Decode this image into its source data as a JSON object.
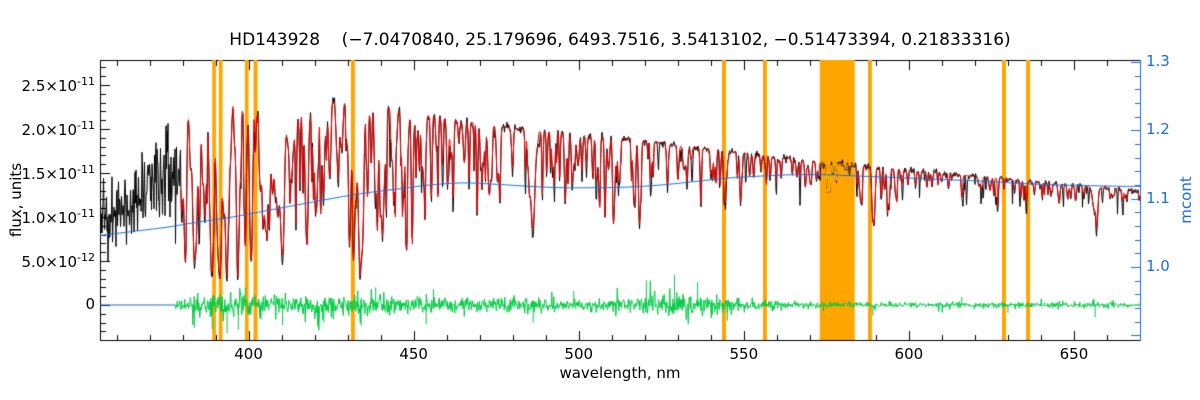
{
  "chart_data": {
    "type": "line",
    "title": "HD143928    (−7.0470840, 25.179696, 6493.7516, 3.5413102, −0.51473394, 0.21833316)",
    "xlabel": "wavelength, nm",
    "ylabel_left": "flux, units",
    "ylabel_right": "mcont",
    "x_range": [
      355,
      670
    ],
    "y_left_range": [
      -3.98e-12,
      2.784e-11
    ],
    "y_right_range": [
      0.8931,
      1.3029
    ],
    "x_major_ticks": [
      {
        "v": 400,
        "label": "400"
      },
      {
        "v": 450,
        "label": "450"
      },
      {
        "v": 500,
        "label": "500"
      },
      {
        "v": 550,
        "label": "550"
      },
      {
        "v": 600,
        "label": "600"
      },
      {
        "v": 650,
        "label": "650"
      }
    ],
    "x_minor_step": 10,
    "y_left_ticks": [
      {
        "v": 0,
        "label": "0"
      },
      {
        "v": 5e-12,
        "label": "5.0×10^-12"
      },
      {
        "v": 1e-11,
        "label": "1.0×10^-11"
      },
      {
        "v": 1.5e-11,
        "label": "1.5×10^-11"
      },
      {
        "v": 2e-11,
        "label": "2.0×10^-11"
      },
      {
        "v": 2.5e-11,
        "label": "2.5×10^-11"
      }
    ],
    "y_left_minor_step": 1e-12,
    "y_right_ticks": [
      {
        "v": 1.0,
        "label": "1.0"
      },
      {
        "v": 1.1,
        "label": "1.1"
      },
      {
        "v": 1.2,
        "label": "1.2"
      },
      {
        "v": 1.3,
        "label": "1.3"
      }
    ],
    "y_right_minor_step": 0.02,
    "colors": {
      "observed": "#000000",
      "fit": "#e60000",
      "fit_masked": "#ffdf00",
      "continuum": "#1a6ee0",
      "residual": "#00cc44",
      "mask": "#ffa500",
      "axis": "#000000",
      "right_axis": "#1a6ee0",
      "background": "#ffffff"
    },
    "masked_bands": [
      [
        389.0,
        390.1
      ],
      [
        391.0,
        392.1
      ],
      [
        398.9,
        400.0
      ],
      [
        401.5,
        402.7
      ],
      [
        431.0,
        432.2
      ],
      [
        543.4,
        544.6
      ],
      [
        555.8,
        557.0
      ],
      [
        573.0,
        583.6
      ],
      [
        587.6,
        588.8
      ],
      [
        628.2,
        629.4
      ],
      [
        635.5,
        636.7
      ]
    ],
    "continuum_envelope": {
      "x": [
        355,
        362,
        368,
        373,
        378,
        383,
        390,
        400,
        410,
        420,
        430,
        440,
        450,
        460,
        470,
        480,
        490,
        500,
        510,
        520,
        530,
        540,
        550,
        560,
        570,
        580,
        590,
        600,
        610,
        620,
        630,
        640,
        650,
        660,
        670
      ],
      "y": [
        1.3,
        1.45,
        1.65,
        1.85,
        2.1,
        2.28,
        2.35,
        2.33,
        2.3,
        2.31,
        2.33,
        2.26,
        2.18,
        2.12,
        2.06,
        2.01,
        1.97,
        1.94,
        1.9,
        1.86,
        1.81,
        1.77,
        1.72,
        1.68,
        1.64,
        1.6,
        1.57,
        1.53,
        1.5,
        1.46,
        1.43,
        1.39,
        1.36,
        1.33,
        1.3
      ]
    },
    "major_lines": [
      [
        379.8,
        0.5,
        0.6
      ],
      [
        381.0,
        0.4,
        0.4
      ],
      [
        383.5,
        0.62,
        0.7
      ],
      [
        385.0,
        0.4,
        0.4
      ],
      [
        386.7,
        0.45,
        0.5
      ],
      [
        388.9,
        0.68,
        0.8
      ],
      [
        391.0,
        0.35,
        0.4
      ],
      [
        393.4,
        0.74,
        0.8
      ],
      [
        396.8,
        0.72,
        0.8
      ],
      [
        400.9,
        0.35,
        0.4
      ],
      [
        404.6,
        0.42,
        0.4
      ],
      [
        406.3,
        0.35,
        0.35
      ],
      [
        410.2,
        0.68,
        0.9
      ],
      [
        413.1,
        0.3,
        0.35
      ],
      [
        414.4,
        0.35,
        0.35
      ],
      [
        417.2,
        0.3,
        0.35
      ],
      [
        420.2,
        0.28,
        0.3
      ],
      [
        422.7,
        0.45,
        0.45
      ],
      [
        427.2,
        0.35,
        0.35
      ],
      [
        430.8,
        0.5,
        0.5
      ],
      [
        432.6,
        0.38,
        0.4
      ],
      [
        434.0,
        0.66,
        0.9
      ],
      [
        438.4,
        0.45,
        0.45
      ],
      [
        440.5,
        0.3,
        0.3
      ],
      [
        444.0,
        0.28,
        0.3
      ],
      [
        447.1,
        0.32,
        0.35
      ],
      [
        453.0,
        0.3,
        0.35
      ],
      [
        455.4,
        0.28,
        0.3
      ],
      [
        458.7,
        0.25,
        0.3
      ],
      [
        462.0,
        0.25,
        0.3
      ],
      [
        466.8,
        0.28,
        0.3
      ],
      [
        470.3,
        0.22,
        0.3
      ],
      [
        473.7,
        0.2,
        0.3
      ],
      [
        476.0,
        0.22,
        0.3
      ],
      [
        480.0,
        0.2,
        0.3
      ],
      [
        486.1,
        0.56,
        0.9
      ],
      [
        489.0,
        0.22,
        0.3
      ],
      [
        492.0,
        0.2,
        0.3
      ],
      [
        495.8,
        0.18,
        0.3
      ],
      [
        498.0,
        0.25,
        0.35
      ],
      [
        501.0,
        0.22,
        0.3
      ],
      [
        504.2,
        0.2,
        0.3
      ],
      [
        508.0,
        0.18,
        0.3
      ],
      [
        512.0,
        0.22,
        0.3
      ],
      [
        516.7,
        0.3,
        0.45
      ],
      [
        518.4,
        0.28,
        0.4
      ],
      [
        522.0,
        0.18,
        0.3
      ],
      [
        526.9,
        0.25,
        0.35
      ],
      [
        532.8,
        0.22,
        0.35
      ],
      [
        537.0,
        0.18,
        0.3
      ],
      [
        540.0,
        0.16,
        0.3
      ],
      [
        544.0,
        0.18,
        0.3
      ],
      [
        549.0,
        0.15,
        0.3
      ],
      [
        553.0,
        0.14,
        0.3
      ],
      [
        558.0,
        0.14,
        0.3
      ],
      [
        561.3,
        0.13,
        0.3
      ],
      [
        567.0,
        0.12,
        0.3
      ],
      [
        572.0,
        0.12,
        0.3
      ],
      [
        578.0,
        0.12,
        0.3
      ],
      [
        585.0,
        0.12,
        0.3
      ],
      [
        589.0,
        0.28,
        0.45
      ],
      [
        589.6,
        0.22,
        0.4
      ],
      [
        594.0,
        0.1,
        0.3
      ],
      [
        598.0,
        0.1,
        0.3
      ],
      [
        602.0,
        0.1,
        0.3
      ],
      [
        607.0,
        0.1,
        0.3
      ],
      [
        612.0,
        0.1,
        0.3
      ],
      [
        616.0,
        0.09,
        0.3
      ],
      [
        622.0,
        0.1,
        0.3
      ],
      [
        627.0,
        0.09,
        0.3
      ],
      [
        632.0,
        0.09,
        0.3
      ],
      [
        638.0,
        0.09,
        0.3
      ],
      [
        643.0,
        0.09,
        0.3
      ],
      [
        649.0,
        0.09,
        0.3
      ],
      [
        653.0,
        0.08,
        0.3
      ],
      [
        656.3,
        0.2,
        0.9
      ],
      [
        661.0,
        0.08,
        0.3
      ],
      [
        666.0,
        0.08,
        0.3
      ]
    ],
    "minor_line_regions": [
      {
        "range": [
          380,
          450
        ],
        "count": 160,
        "depth": [
          0.05,
          0.45
        ],
        "width": [
          0.15,
          0.5
        ]
      },
      {
        "range": [
          450,
          520
        ],
        "count": 80,
        "depth": [
          0.04,
          0.3
        ],
        "width": [
          0.15,
          0.45
        ]
      },
      {
        "range": [
          520,
          600
        ],
        "count": 55,
        "depth": [
          0.03,
          0.22
        ],
        "width": [
          0.15,
          0.4
        ]
      },
      {
        "range": [
          600,
          670
        ],
        "count": 35,
        "depth": [
          0.03,
          0.15
        ],
        "width": [
          0.15,
          0.4
        ]
      }
    ],
    "observed_extra": {
      "range": [
        380,
        670
      ],
      "count": 70,
      "depth": [
        0.04,
        0.22
      ],
      "width": [
        0.08,
        0.25
      ],
      "core_extra": 0.25
    },
    "observed_noise": {
      "pre_fit_level": 0.78,
      "pre_fit_sigma": 0.17,
      "post_sigma": 0.012
    },
    "fit_range": [
      379.5,
      670
    ],
    "zero_segment": [
      355,
      377.5
    ],
    "mcont_curve": {
      "x": [
        355,
        365,
        375,
        385,
        395,
        405,
        415,
        425,
        435,
        445,
        455,
        465,
        475,
        485,
        495,
        505,
        515,
        525,
        535,
        545,
        555,
        565,
        575,
        585,
        595,
        605,
        615,
        625,
        635,
        645,
        655,
        665,
        670
      ],
      "y": [
        1.046,
        1.052,
        1.058,
        1.066,
        1.073,
        1.082,
        1.091,
        1.1,
        1.108,
        1.114,
        1.12,
        1.123,
        1.121,
        1.118,
        1.116,
        1.116,
        1.117,
        1.12,
        1.125,
        1.13,
        1.133,
        1.135,
        1.135,
        1.133,
        1.131,
        1.129,
        1.127,
        1.125,
        1.122,
        1.12,
        1.119,
        1.118,
        1.118
      ]
    },
    "residual": {
      "range": [
        377.5,
        670
      ],
      "amplitude_x": [
        377,
        385,
        395,
        405,
        415,
        425,
        435,
        445,
        455,
        465,
        475,
        485,
        495,
        505,
        515,
        525,
        535,
        545,
        555,
        565,
        575,
        585,
        595,
        605,
        615,
        625,
        635,
        645,
        655,
        665,
        670
      ],
      "amplitude": [
        0.25,
        0.6,
        0.7,
        0.55,
        0.5,
        0.5,
        0.55,
        0.5,
        0.45,
        0.4,
        0.38,
        0.4,
        0.35,
        0.33,
        0.4,
        0.55,
        0.6,
        0.45,
        0.3,
        0.18,
        0.15,
        0.17,
        0.18,
        0.15,
        0.15,
        0.15,
        0.14,
        0.13,
        0.16,
        0.13,
        0.13
      ],
      "tail_prob": 0.07,
      "tail_mult": 2.3,
      "spikes": [
        {
          "wl": 383.6,
          "v": -2.6
        },
        {
          "wl": 389.0,
          "v": -2.8
        },
        {
          "wl": 393.5,
          "v": -3.2
        },
        {
          "wl": 396.9,
          "v": -2.8
        },
        {
          "wl": 399.0,
          "v": 2.0
        },
        {
          "wl": 410.3,
          "v": -2.3
        },
        {
          "wl": 422.8,
          "v": -2.0
        },
        {
          "wl": 434.1,
          "v": -2.4
        },
        {
          "wl": 438.5,
          "v": 2.0
        },
        {
          "wl": 453.8,
          "v": -2.2
        },
        {
          "wl": 456.0,
          "v": 1.8
        },
        {
          "wl": 486.2,
          "v": -2.0
        },
        {
          "wl": 498.5,
          "v": 1.6
        },
        {
          "wl": 520.5,
          "v": 2.8
        },
        {
          "wl": 529.0,
          "v": 3.4
        },
        {
          "wl": 536.0,
          "v": 2.6
        },
        {
          "wl": 545.0,
          "v": -1.8
        },
        {
          "wl": 589.1,
          "v": -1.2
        },
        {
          "wl": 616.0,
          "v": 0.9
        },
        {
          "wl": 630.0,
          "v": -0.9
        },
        {
          "wl": 656.4,
          "v": -1.4
        }
      ]
    },
    "seed": 42
  }
}
